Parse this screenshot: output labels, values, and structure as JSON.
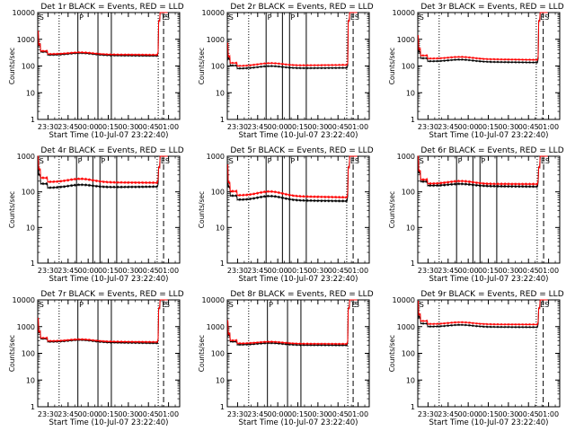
{
  "colors": {
    "events": "#000000",
    "lld": "#ff0000",
    "background": "#ffffff",
    "axes": "#000000"
  },
  "chart_data": [
    {
      "type": "line",
      "title": "Det 1r BLACK = Events, RED = LLD",
      "xlabel": "Start Time (10-Jul-07 23:22:40)",
      "ylabel": "Counts/sec",
      "xlim_min": [
        -7.67,
        98.33
      ],
      "yscale": "log",
      "ylim": [
        1,
        10000
      ],
      "x_ticks": [
        "23:30",
        "23:45",
        "00:00",
        "00:15",
        "00:30",
        "00:45",
        "01:00"
      ],
      "y_ticks": [
        "1",
        "10",
        "100",
        "1000",
        "10000"
      ],
      "series": [
        {
          "values_start": 260,
          "values_hump": 300,
          "values_end": 240,
          "points_x": [
            -7.6,
            -7.2,
            -6,
            0,
            5,
            10,
            15,
            20,
            25,
            30,
            35,
            40,
            45,
            50,
            55,
            60,
            65,
            70,
            75,
            80,
            82,
            83,
            84,
            85,
            86,
            87,
            88,
            89,
            90
          ],
          "points_y": [
            1900,
            600,
            380,
            260,
            258,
            256,
            268,
            285,
            300,
            300,
            290,
            275,
            262,
            255,
            252,
            250,
            248,
            246,
            244,
            245,
            248,
            255,
            300,
            1200,
            6000,
            12000,
            12000,
            12000,
            12000
          ]
        },
        {
          "points_x": [
            -7.6,
            -7.2,
            -6,
            0,
            5,
            10,
            15,
            20,
            25,
            30,
            35,
            40,
            45,
            50,
            55,
            60,
            65,
            70,
            75,
            80,
            82,
            83,
            84,
            85,
            86,
            87,
            88,
            89,
            90
          ],
          "points_y": [
            1800,
            560,
            320,
            230,
            225,
            222,
            232,
            248,
            262,
            262,
            253,
            240,
            228,
            222,
            219,
            217,
            215,
            213,
            212,
            212,
            214,
            220,
            280,
            1100,
            5800,
            11000,
            11000,
            11000,
            11000
          ]
        }
      ],
      "markers": {
        "solid_x": [
          22.3,
          37.3,
          47.3
        ],
        "dotted_x": [
          8.3,
          82.3
        ],
        "dashed_x": [
          86.3
        ],
        "dashdot_x": [
          98.3
        ],
        "letters": [
          {
            "x": -7.2,
            "t": "S"
          },
          {
            "x": 22.6,
            "t": "P"
          },
          {
            "x": 84.5,
            "t": "E"
          },
          {
            "x": 86.8,
            "t": "S"
          }
        ]
      }
    }
  ]
}
